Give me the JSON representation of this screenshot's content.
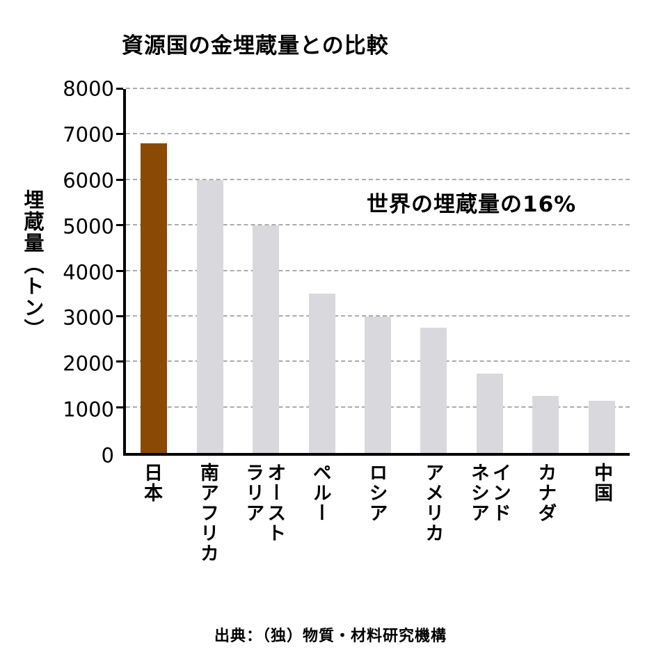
{
  "title": "資源国の金埋蔵量との比較",
  "chart_data": {
    "type": "bar",
    "title": "資源国の金埋蔵量との比較",
    "xlabel": "",
    "ylabel": "埋蔵量（トン）",
    "categories": [
      "日本",
      "南アフリカ",
      "オーストラリア",
      "ペルー",
      "ロシア",
      "アメリカ",
      "インドネシア",
      "カナダ",
      "中国"
    ],
    "category_display": [
      "日本",
      "南アフリカ",
      "オースト\nラリア",
      "ペルー",
      "ロシア",
      "アメリカ",
      "インド\nネシア",
      "カナダ",
      "中国"
    ],
    "values": [
      6800,
      6000,
      5000,
      3500,
      3000,
      2750,
      1750,
      1250,
      1150
    ],
    "ylim": [
      0,
      8000
    ],
    "yticks": [
      0,
      1000,
      2000,
      3000,
      4000,
      5000,
      6000,
      7000,
      8000
    ],
    "annotation": "世界の埋蔵量の16%",
    "highlight_index": 0,
    "legend_position": "none",
    "grid": "horizontal-dashed",
    "colors": {
      "highlight_bar": "#8a4a05",
      "bar": "#d9d9dd",
      "gridline": "#ababab",
      "axis": "#000000"
    }
  },
  "source": "出典：（独）物質・材料研究機構"
}
